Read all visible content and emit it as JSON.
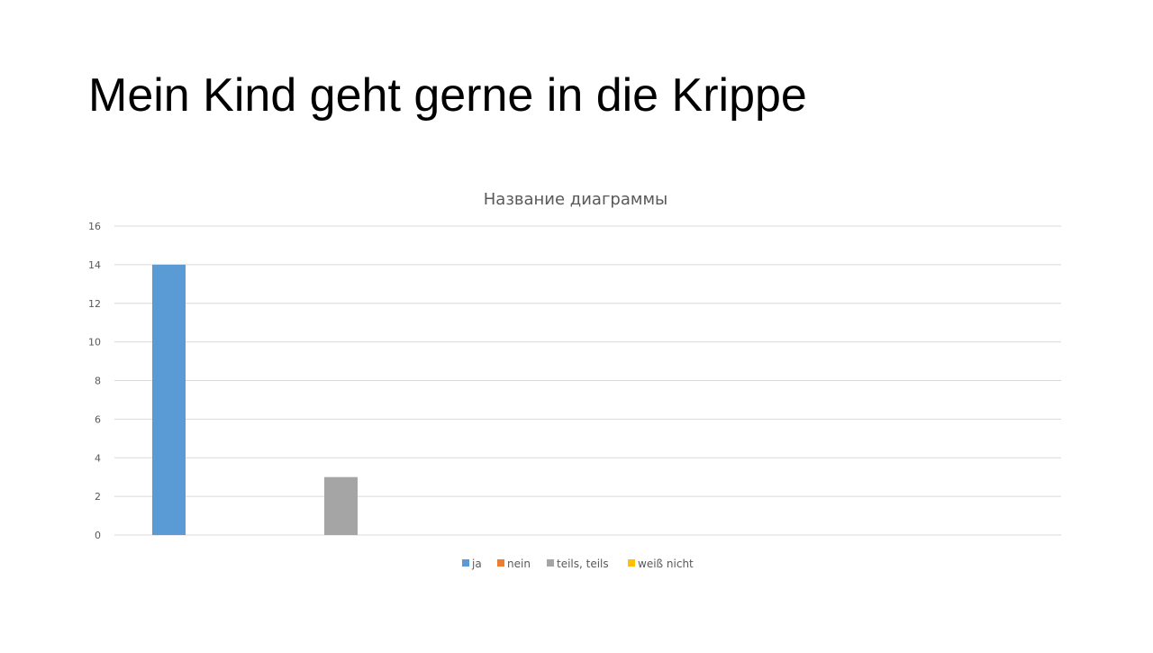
{
  "slide": {
    "title": "Mein Kind geht gerne in die Krippe"
  },
  "chart_data": {
    "type": "bar",
    "title": "Название диаграммы",
    "xlabel": "",
    "ylabel": "",
    "ylim": [
      0,
      16
    ],
    "yticks": [
      0,
      2,
      4,
      6,
      8,
      10,
      12,
      14,
      16
    ],
    "grid": true,
    "legend_position": "bottom",
    "series": [
      {
        "name": "ja",
        "value": 14,
        "color": "#5B9BD5"
      },
      {
        "name": "nein",
        "value": 0,
        "color": "#ED7D31"
      },
      {
        "name": "teils, teils",
        "value": 3,
        "color": "#A5A5A5"
      },
      {
        "name": "weiß nicht",
        "value": 0,
        "color": "#FFC000"
      }
    ]
  }
}
